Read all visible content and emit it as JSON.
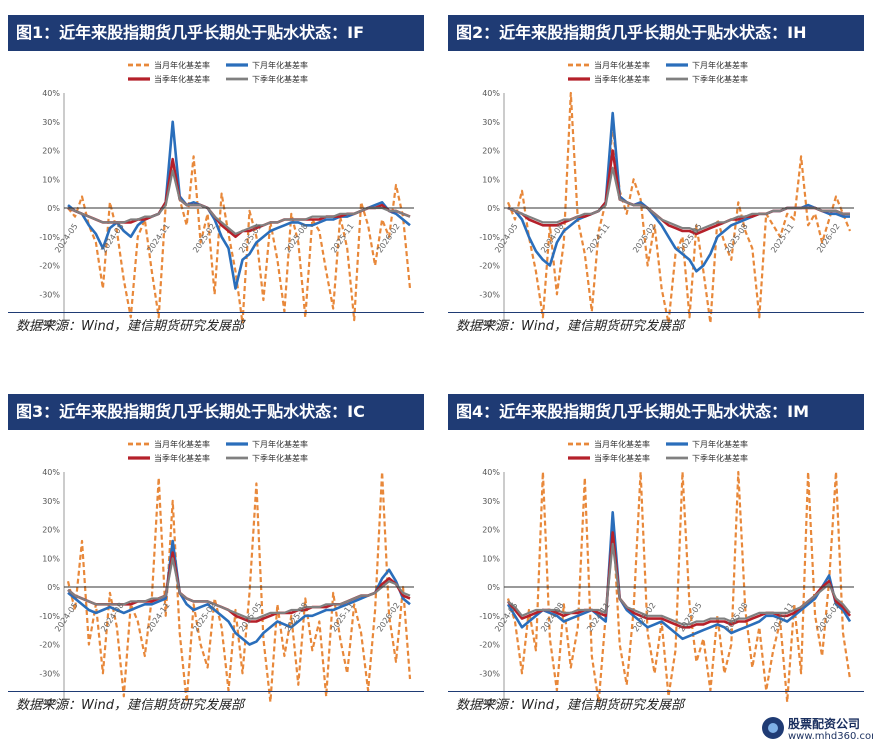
{
  "panels": [
    {
      "id": "IF",
      "title": "图1：近年来股指期货几乎长期处于贴水状态：IF",
      "source": "数据来源：Wind，建信期货研究发展部"
    },
    {
      "id": "IH",
      "title": "图2：近年来股指期货几乎长期处于贴水状态：IH",
      "source": "数据来源：Wind，建信期货研究发展部"
    },
    {
      "id": "IC",
      "title": "图3：近年来股指期货几乎长期处于贴水状态：IC",
      "source": "数据来源：Wind，建信期货研究发展部"
    },
    {
      "id": "IM",
      "title": "图4：近年来股指期货几乎长期处于贴水状态：IM",
      "source": "数据来源：Wind，建信期货研究发展部"
    }
  ],
  "watermark": {
    "title": "股票配资公司",
    "url": "www.mhd360.com"
  },
  "colors": {
    "current_month": "#e8883a",
    "next_month": "#2a6ebb",
    "current_quarter": "#b5202a",
    "next_quarter": "#808080",
    "title_bg": "#1f3b74"
  },
  "chart_data": [
    {
      "type": "line",
      "panel": "IF",
      "yticks": [
        "40%",
        "30%",
        "20%",
        "10%",
        "0%",
        "-10%",
        "-20%",
        "-30%",
        "-40%"
      ],
      "ylim": [
        -40,
        40
      ],
      "xticks": [
        "2024-05",
        "2024-08",
        "2024-11",
        "2025-02",
        "2025-05",
        "2025-08",
        "2025-11",
        "2026-02"
      ],
      "series": [
        {
          "name": "当月年化基差率",
          "values": [
            0,
            -3,
            4,
            -6,
            -12,
            -28,
            2,
            -8,
            -25,
            -38,
            -10,
            -4,
            -22,
            -38,
            1,
            16,
            3,
            -6,
            18,
            -12,
            -2,
            -30,
            5,
            -9,
            -22,
            -40,
            -1,
            -10,
            -32,
            -5,
            -18,
            -36,
            -2,
            -12,
            -38,
            -4,
            -8,
            -22,
            -35,
            -3,
            -14,
            -39,
            2,
            -6,
            -20,
            -4,
            -10,
            8,
            -3,
            -28
          ]
        },
        {
          "name": "下月年化基差率",
          "values": [
            1,
            -1,
            -2,
            -6,
            -9,
            -14,
            -7,
            -5,
            -8,
            -10,
            -6,
            -4,
            -3,
            -2,
            2,
            30,
            4,
            1,
            2,
            1,
            0,
            -4,
            -10,
            -14,
            -28,
            -18,
            -16,
            -12,
            -10,
            -8,
            -7,
            -6,
            -5,
            -5,
            -6,
            -6,
            -5,
            -4,
            -4,
            -3,
            -3,
            -2,
            -1,
            0,
            1,
            2,
            -1,
            -2,
            -4,
            -6
          ]
        },
        {
          "name": "当季年化基差率",
          "values": [
            0,
            -1,
            -2,
            -3,
            -4,
            -5,
            -5,
            -5,
            -5,
            -5,
            -4,
            -4,
            -3,
            -2,
            2,
            17,
            3,
            1,
            1,
            1,
            0,
            -3,
            -6,
            -8,
            -10,
            -8,
            -8,
            -7,
            -6,
            -5,
            -5,
            -4,
            -4,
            -4,
            -4,
            -4,
            -4,
            -3,
            -3,
            -3,
            -2,
            -2,
            -1,
            0,
            0,
            1,
            -1,
            -1,
            -2,
            -3
          ]
        },
        {
          "name": "下季年化基差率",
          "values": [
            0,
            -1,
            -2,
            -3,
            -4,
            -5,
            -5,
            -5,
            -5,
            -4,
            -4,
            -3,
            -3,
            -2,
            1,
            13,
            3,
            1,
            1,
            1,
            0,
            -3,
            -5,
            -7,
            -9,
            -8,
            -7,
            -6,
            -6,
            -5,
            -5,
            -4,
            -4,
            -4,
            -4,
            -3,
            -3,
            -3,
            -3,
            -2,
            -2,
            -2,
            -1,
            0,
            0,
            0,
            -1,
            -1,
            -2,
            -3
          ]
        }
      ]
    },
    {
      "type": "line",
      "panel": "IH",
      "yticks": [
        "40%",
        "30%",
        "20%",
        "10%",
        "0%",
        "-10%",
        "-20%",
        "-30%",
        "-40%"
      ],
      "ylim": [
        -40,
        40
      ],
      "xticks": [
        "2024-05",
        "2024-08",
        "2024-11",
        "2025-02",
        "2025-05",
        "2025-08",
        "2025-11",
        "2026-02"
      ],
      "series": [
        {
          "name": "当月年化基差率",
          "values": [
            2,
            -4,
            6,
            -10,
            -22,
            -38,
            -6,
            -30,
            -12,
            40,
            -4,
            -16,
            -36,
            -8,
            2,
            28,
            6,
            -2,
            10,
            3,
            -20,
            -6,
            -28,
            -40,
            -16,
            -10,
            -38,
            -6,
            -22,
            -40,
            -4,
            -12,
            -18,
            2,
            -8,
            -14,
            -38,
            -2,
            -6,
            -10,
            -2,
            -4,
            18,
            -6,
            -2,
            -12,
            -4,
            4,
            -2,
            -8
          ]
        },
        {
          "name": "下月年化基差率",
          "values": [
            0,
            -1,
            -4,
            -10,
            -15,
            -18,
            -20,
            -12,
            -8,
            -6,
            -4,
            -3,
            -2,
            -1,
            2,
            33,
            4,
            2,
            1,
            2,
            0,
            -3,
            -6,
            -10,
            -14,
            -16,
            -18,
            -22,
            -20,
            -16,
            -10,
            -8,
            -6,
            -5,
            -4,
            -3,
            -2,
            -2,
            -1,
            -1,
            0,
            0,
            0,
            1,
            0,
            -1,
            -2,
            -2,
            -3,
            -3
          ]
        },
        {
          "name": "当季年化基差率",
          "values": [
            0,
            -1,
            -2,
            -4,
            -5,
            -6,
            -6,
            -6,
            -5,
            -4,
            -3,
            -3,
            -2,
            -1,
            2,
            20,
            3,
            2,
            1,
            1,
            0,
            -2,
            -4,
            -6,
            -7,
            -8,
            -8,
            -9,
            -8,
            -7,
            -6,
            -5,
            -4,
            -4,
            -3,
            -3,
            -2,
            -2,
            -1,
            -1,
            0,
            0,
            0,
            0,
            0,
            -1,
            -1,
            -1,
            -2,
            -2
          ]
        },
        {
          "name": "下季年化基差率",
          "values": [
            0,
            -1,
            -2,
            -3,
            -4,
            -5,
            -5,
            -5,
            -4,
            -4,
            -3,
            -2,
            -2,
            -1,
            1,
            14,
            3,
            2,
            1,
            1,
            0,
            -2,
            -4,
            -5,
            -6,
            -7,
            -7,
            -8,
            -7,
            -6,
            -5,
            -5,
            -4,
            -3,
            -3,
            -2,
            -2,
            -2,
            -1,
            -1,
            0,
            0,
            0,
            0,
            0,
            -1,
            -1,
            -1,
            -2,
            -2
          ]
        }
      ]
    },
    {
      "type": "line",
      "panel": "IC",
      "yticks": [
        "40%",
        "30%",
        "20%",
        "10%",
        "0%",
        "-10%",
        "-20%",
        "-30%",
        "-40%"
      ],
      "ylim": [
        -40,
        40
      ],
      "xticks": [
        "2024-05",
        "2024-08",
        "2024-11",
        "2025-02",
        "2025-05",
        "2025-08",
        "2025-11",
        "2026-02"
      ],
      "series": [
        {
          "name": "当月年化基差率",
          "values": [
            2,
            -8,
            16,
            -20,
            -6,
            -30,
            -2,
            -14,
            -38,
            -6,
            -12,
            -24,
            -4,
            38,
            -10,
            30,
            -16,
            -40,
            -6,
            -20,
            -28,
            -4,
            -14,
            -36,
            -8,
            -30,
            -2,
            36,
            -18,
            -40,
            -6,
            -24,
            -10,
            -34,
            -4,
            -22,
            -12,
            -38,
            -2,
            -18,
            -30,
            -6,
            -16,
            -36,
            -8,
            40,
            -10,
            -26,
            0,
            -32
          ]
        },
        {
          "name": "下月年化基差率",
          "values": [
            -2,
            -4,
            -6,
            -8,
            -9,
            -8,
            -7,
            -8,
            -9,
            -8,
            -7,
            -6,
            -6,
            -5,
            -4,
            16,
            -2,
            -6,
            -8,
            -7,
            -6,
            -8,
            -10,
            -12,
            -16,
            -18,
            -20,
            -19,
            -16,
            -14,
            -12,
            -13,
            -14,
            -12,
            -10,
            -10,
            -9,
            -8,
            -8,
            -7,
            -6,
            -5,
            -4,
            -3,
            -2,
            3,
            6,
            2,
            -4,
            -6
          ]
        },
        {
          "name": "当季年化基差率",
          "values": [
            -1,
            -3,
            -4,
            -5,
            -6,
            -6,
            -6,
            -6,
            -6,
            -6,
            -5,
            -5,
            -5,
            -4,
            -3,
            12,
            -2,
            -4,
            -5,
            -5,
            -5,
            -6,
            -7,
            -8,
            -10,
            -11,
            -12,
            -12,
            -11,
            -10,
            -9,
            -9,
            -9,
            -8,
            -8,
            -7,
            -7,
            -7,
            -6,
            -6,
            -5,
            -4,
            -3,
            -3,
            -2,
            1,
            3,
            1,
            -3,
            -4
          ]
        },
        {
          "name": "下季年化基差率",
          "values": [
            -1,
            -3,
            -4,
            -5,
            -6,
            -6,
            -6,
            -6,
            -6,
            -5,
            -5,
            -5,
            -4,
            -4,
            -3,
            10,
            -2,
            -4,
            -5,
            -5,
            -5,
            -6,
            -7,
            -8,
            -9,
            -10,
            -11,
            -11,
            -10,
            -9,
            -9,
            -9,
            -8,
            -8,
            -7,
            -7,
            -7,
            -6,
            -6,
            -6,
            -5,
            -4,
            -3,
            -3,
            -2,
            0,
            2,
            1,
            -2,
            -3
          ]
        }
      ]
    },
    {
      "type": "line",
      "panel": "IM",
      "yticks": [
        "40%",
        "30%",
        "20%",
        "10%",
        "0%",
        "-10%",
        "-20%",
        "-30%",
        "-40%"
      ],
      "ylim": [
        -40,
        40
      ],
      "xticks": [
        "2024-05",
        "2024-08",
        "2024-11",
        "2025-02",
        "2025-05",
        "2025-08",
        "2025-11",
        "2026-02"
      ],
      "series": [
        {
          "name": "当月年化基差率",
          "values": [
            -4,
            -12,
            -30,
            -8,
            -22,
            40,
            -18,
            -36,
            -6,
            -28,
            -14,
            38,
            -24,
            -40,
            -10,
            24,
            -20,
            -34,
            -8,
            40,
            -16,
            -30,
            -12,
            -38,
            -22,
            40,
            -6,
            -26,
            -18,
            -36,
            -10,
            -30,
            -20,
            40,
            -8,
            -28,
            -14,
            -36,
            -22,
            -12,
            -40,
            -6,
            -30,
            40,
            -10,
            -24,
            2,
            40,
            -16,
            -32
          ]
        },
        {
          "name": "下月年化基差率",
          "values": [
            -6,
            -10,
            -14,
            -12,
            -10,
            -8,
            -9,
            -10,
            -12,
            -11,
            -10,
            -9,
            -8,
            -10,
            -12,
            26,
            -4,
            -8,
            -10,
            -12,
            -14,
            -13,
            -12,
            -14,
            -16,
            -18,
            -17,
            -16,
            -15,
            -14,
            -13,
            -14,
            -16,
            -15,
            -14,
            -13,
            -12,
            -10,
            -10,
            -11,
            -12,
            -10,
            -8,
            -6,
            -4,
            0,
            4,
            -6,
            -8,
            -12
          ]
        },
        {
          "name": "当季年化基差率",
          "values": [
            -5,
            -8,
            -11,
            -10,
            -9,
            -8,
            -8,
            -9,
            -10,
            -9,
            -9,
            -8,
            -8,
            -9,
            -10,
            19,
            -4,
            -7,
            -9,
            -10,
            -11,
            -11,
            -11,
            -12,
            -13,
            -14,
            -14,
            -13,
            -13,
            -12,
            -12,
            -12,
            -13,
            -12,
            -12,
            -11,
            -10,
            -9,
            -9,
            -10,
            -10,
            -9,
            -7,
            -5,
            -3,
            0,
            2,
            -5,
            -7,
            -10
          ]
        },
        {
          "name": "下季年化基差率",
          "values": [
            -5,
            -7,
            -10,
            -9,
            -8,
            -8,
            -8,
            -8,
            -9,
            -9,
            -8,
            -8,
            -8,
            -8,
            -9,
            15,
            -4,
            -7,
            -8,
            -9,
            -10,
            -10,
            -10,
            -11,
            -12,
            -13,
            -13,
            -12,
            -12,
            -11,
            -11,
            -11,
            -12,
            -11,
            -11,
            -10,
            -9,
            -9,
            -9,
            -9,
            -9,
            -8,
            -7,
            -5,
            -3,
            -1,
            1,
            -4,
            -6,
            -9
          ]
        }
      ]
    }
  ]
}
